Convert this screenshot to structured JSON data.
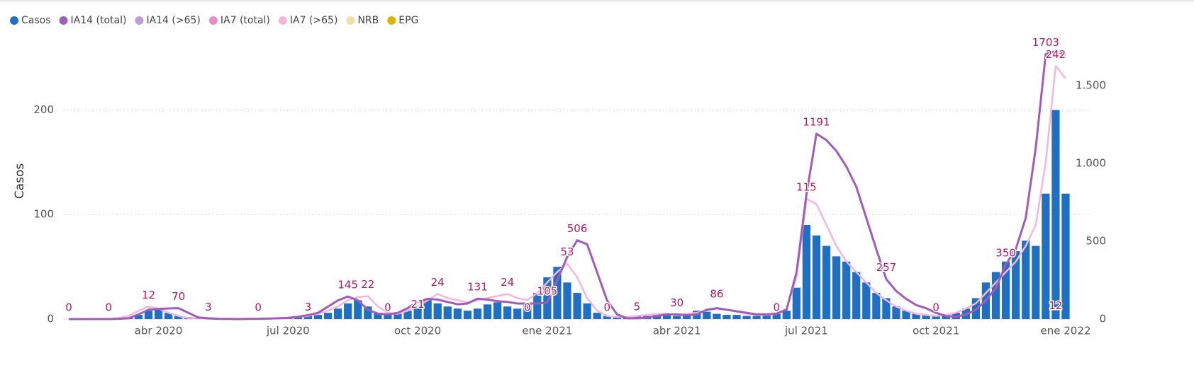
{
  "chart_data": {
    "type": "bar",
    "y_label": "Casos",
    "categories": [
      null,
      null,
      null,
      null,
      null,
      null,
      null,
      null,
      null,
      "abr 2020",
      null,
      null,
      null,
      null,
      null,
      null,
      null,
      null,
      null,
      null,
      null,
      null,
      "jul 2020",
      null,
      null,
      null,
      null,
      null,
      null,
      null,
      null,
      null,
      null,
      null,
      null,
      "oct 2020",
      null,
      null,
      null,
      null,
      null,
      null,
      null,
      null,
      null,
      null,
      null,
      null,
      "ene 2021",
      null,
      null,
      null,
      null,
      null,
      null,
      null,
      null,
      null,
      null,
      null,
      null,
      "abr 2021",
      null,
      null,
      null,
      null,
      null,
      null,
      null,
      null,
      null,
      null,
      null,
      null,
      "jul 2021",
      null,
      null,
      null,
      null,
      null,
      null,
      null,
      null,
      null,
      null,
      null,
      null,
      "oct 2021",
      null,
      null,
      null,
      null,
      null,
      null,
      null,
      null,
      null,
      null,
      null,
      null,
      "ene 2022"
    ],
    "ylim": [
      0,
      268
    ],
    "yticks": [
      0,
      100,
      200
    ],
    "y2lim": [
      0,
      1800
    ],
    "y2ticks": [
      0,
      500,
      {
        "value": 1000,
        "label": "1.000"
      },
      {
        "value": 1500,
        "label": "1.500"
      }
    ],
    "grid": true,
    "legend": "top-left",
    "series": [
      {
        "name": "Casos",
        "color": "#1f6fc5",
        "type": "bar",
        "values": [
          0,
          0,
          0,
          0,
          0,
          0,
          1,
          4,
          8,
          10,
          6,
          3,
          2,
          1,
          1,
          0,
          0,
          0,
          0,
          0,
          1,
          1,
          1,
          2,
          3,
          4,
          6,
          10,
          15,
          18,
          12,
          6,
          4,
          5,
          8,
          12,
          18,
          15,
          12,
          10,
          8,
          10,
          14,
          16,
          12,
          10,
          14,
          25,
          40,
          50,
          35,
          25,
          15,
          6,
          3,
          2,
          2,
          3,
          3,
          4,
          4,
          3,
          5,
          8,
          7,
          5,
          4,
          4,
          3,
          3,
          4,
          5,
          8,
          30,
          90,
          80,
          70,
          60,
          55,
          45,
          35,
          25,
          20,
          12,
          8,
          5,
          4,
          3,
          4,
          6,
          10,
          20,
          35,
          45,
          55,
          65,
          75,
          70,
          120,
          200,
          120
        ]
      },
      {
        "name": "IA14 (total)",
        "color": "#a05cb8",
        "type": "line",
        "axis": "y2",
        "values": [
          0,
          0,
          0,
          0,
          0,
          2,
          5,
          30,
          60,
          65,
          68,
          70,
          40,
          10,
          5,
          2,
          1,
          0,
          1,
          2,
          3,
          5,
          8,
          15,
          25,
          40,
          80,
          120,
          145,
          120,
          60,
          35,
          30,
          40,
          70,
          110,
          130,
          125,
          110,
          95,
          100,
          131,
          125,
          115,
          110,
          100,
          100,
          100,
          105,
          250,
          400,
          506,
          480,
          300,
          120,
          30,
          5,
          5,
          10,
          20,
          30,
          30,
          25,
          30,
          60,
          70,
          60,
          50,
          40,
          30,
          30,
          35,
          60,
          300,
          800,
          1191,
          1150,
          1080,
          980,
          850,
          650,
          450,
          257,
          180,
          130,
          90,
          70,
          40,
          20,
          15,
          30,
          60,
          120,
          200,
          350,
          450,
          650,
          1100,
          1703,
          1720,
          1700
        ],
        "value_labels": [
          "0",
          null,
          null,
          null,
          "0",
          null,
          null,
          null,
          null,
          null,
          null,
          "70",
          null,
          null,
          null,
          null,
          null,
          null,
          null,
          null,
          null,
          null,
          null,
          null,
          null,
          null,
          null,
          null,
          "145",
          null,
          null,
          null,
          null,
          null,
          null,
          null,
          null,
          null,
          null,
          null,
          null,
          "131",
          null,
          null,
          null,
          null,
          null,
          null,
          "105",
          null,
          null,
          "506",
          null,
          null,
          null,
          null,
          null,
          null,
          null,
          null,
          null,
          null,
          null,
          null,
          null,
          null,
          null,
          null,
          null,
          null,
          null,
          null,
          null,
          null,
          null,
          "1191",
          null,
          null,
          null,
          null,
          null,
          null,
          "257",
          null,
          null,
          null,
          null,
          null,
          null,
          null,
          null,
          null,
          null,
          null,
          "350",
          null,
          null,
          null,
          "1703",
          null,
          null
        ]
      },
      {
        "name": "IA14 (>65)",
        "color": "#c39bd3",
        "type": "line",
        "axis": "y2",
        "values": [
          null,
          null,
          null,
          null,
          null,
          null,
          null,
          null,
          null,
          null,
          null,
          null,
          null,
          null,
          3,
          null,
          null,
          null,
          null,
          0,
          null,
          null,
          null,
          null,
          3,
          null,
          null,
          null,
          null,
          null,
          null,
          null,
          0,
          null,
          null,
          21,
          null,
          null,
          null,
          null,
          null,
          null,
          null,
          null,
          null,
          null,
          0,
          null,
          null,
          null,
          null,
          null,
          null,
          null,
          0,
          null,
          null,
          5,
          null,
          null,
          null,
          30,
          null,
          null,
          null,
          86,
          null,
          null,
          null,
          null,
          null,
          0,
          null,
          null,
          null,
          null,
          null,
          null,
          null,
          null,
          null,
          null,
          null,
          null,
          null,
          null,
          null,
          0,
          null,
          null,
          null,
          null,
          null,
          null,
          null,
          null,
          null,
          null,
          null,
          12,
          null
        ],
        "value_labels": [
          null,
          null,
          null,
          null,
          null,
          null,
          null,
          null,
          null,
          null,
          null,
          null,
          null,
          null,
          "3",
          null,
          null,
          null,
          null,
          "0",
          null,
          null,
          null,
          null,
          "3",
          null,
          null,
          null,
          null,
          null,
          null,
          null,
          "0",
          null,
          null,
          "21",
          null,
          null,
          null,
          null,
          null,
          null,
          null,
          null,
          null,
          null,
          "0",
          null,
          null,
          null,
          null,
          null,
          null,
          null,
          "0",
          null,
          null,
          "5",
          null,
          null,
          null,
          "30",
          null,
          null,
          null,
          "86",
          null,
          null,
          null,
          null,
          null,
          "0",
          null,
          null,
          null,
          null,
          null,
          null,
          null,
          null,
          null,
          null,
          null,
          null,
          null,
          null,
          null,
          "0",
          null,
          null,
          null,
          null,
          null,
          null,
          null,
          null,
          null,
          null,
          null,
          "12",
          null
        ]
      },
      {
        "name": "IA7 (total)",
        "color": "#ea8cc8",
        "type": "line",
        "axis": "y2",
        "values": [
          null,
          null,
          null,
          null,
          null,
          null,
          null,
          null,
          null,
          null,
          null,
          null,
          null,
          null,
          null,
          null,
          null,
          null,
          null,
          null,
          null,
          null,
          null,
          null,
          null,
          null,
          null,
          null,
          null,
          null,
          null,
          null,
          null,
          null,
          null,
          null,
          null,
          null,
          null,
          null,
          null,
          null,
          null,
          null,
          null,
          null,
          null,
          null,
          null,
          null,
          null,
          null,
          null,
          null,
          null,
          null,
          null,
          null,
          null,
          null,
          null,
          null,
          null,
          null,
          null,
          null,
          null,
          null,
          null,
          null,
          null,
          null,
          null,
          null,
          null,
          null,
          null,
          null,
          null,
          null,
          null,
          null,
          null,
          null,
          null,
          null,
          null,
          null,
          null,
          null,
          null,
          null,
          null,
          null,
          null,
          null,
          null,
          null,
          null,
          null,
          null
        ]
      },
      {
        "name": "IA7 (>65)",
        "color": "#f4b6df",
        "type": "line",
        "values": [
          0,
          0,
          0,
          0,
          0,
          1,
          3,
          8,
          12,
          10,
          6,
          3,
          1,
          1,
          0,
          0,
          0,
          0,
          0,
          0,
          0,
          1,
          1,
          2,
          3,
          5,
          8,
          12,
          18,
          21,
          22,
          12,
          6,
          5,
          8,
          12,
          18,
          24,
          20,
          18,
          16,
          18,
          20,
          22,
          24,
          20,
          18,
          25,
          35,
          45,
          53,
          40,
          20,
          8,
          3,
          2,
          2,
          3,
          4,
          5,
          5,
          4,
          5,
          6,
          8,
          10,
          9,
          7,
          5,
          4,
          4,
          5,
          10,
          40,
          115,
          110,
          90,
          70,
          55,
          45,
          35,
          25,
          18,
          12,
          8,
          5,
          4,
          3,
          4,
          6,
          10,
          15,
          25,
          35,
          45,
          55,
          70,
          90,
          150,
          242,
          230
        ],
        "value_labels": [
          null,
          null,
          null,
          null,
          null,
          null,
          null,
          null,
          "12",
          null,
          null,
          null,
          null,
          null,
          null,
          null,
          null,
          null,
          null,
          null,
          null,
          null,
          null,
          null,
          null,
          null,
          null,
          null,
          null,
          null,
          "22",
          null,
          null,
          null,
          null,
          null,
          null,
          "24",
          null,
          null,
          null,
          null,
          null,
          null,
          "24",
          null,
          null,
          null,
          null,
          null,
          "53",
          null,
          null,
          null,
          null,
          null,
          null,
          null,
          null,
          null,
          null,
          null,
          null,
          null,
          null,
          null,
          null,
          null,
          null,
          null,
          null,
          null,
          null,
          null,
          "115",
          null,
          null,
          null,
          null,
          null,
          null,
          null,
          null,
          null,
          null,
          null,
          null,
          null,
          null,
          null,
          null,
          null,
          null,
          null,
          null,
          null,
          null,
          null,
          null,
          "242",
          null
        ]
      },
      {
        "name": "NRB",
        "color": "#f3e0a0",
        "type": "bar",
        "values": [
          null,
          null,
          null,
          null,
          null,
          null,
          null,
          null,
          null,
          null,
          null,
          null,
          null,
          null,
          null,
          null,
          null,
          null,
          null,
          null,
          null,
          null,
          null,
          null,
          null,
          null,
          null,
          null,
          null,
          null,
          null,
          null,
          null,
          null,
          null,
          null,
          null,
          null,
          null,
          null,
          null,
          null,
          null,
          null,
          null,
          null,
          null,
          null,
          null,
          null,
          null,
          null,
          null,
          null,
          null,
          null,
          null,
          null,
          null,
          null,
          null,
          null,
          null,
          null,
          null,
          null,
          null,
          null,
          null,
          null,
          null,
          null,
          null,
          null,
          null,
          null,
          null,
          null,
          null,
          null,
          null,
          null,
          null,
          null,
          null,
          null,
          null,
          null,
          null,
          null,
          null,
          null,
          null,
          null,
          null,
          null,
          null,
          null,
          null,
          null,
          null
        ]
      },
      {
        "name": "EPG",
        "color": "#d9b400",
        "type": "bar",
        "values": [
          null,
          null,
          null,
          null,
          null,
          null,
          null,
          null,
          null,
          null,
          null,
          null,
          null,
          null,
          null,
          null,
          null,
          null,
          null,
          null,
          null,
          null,
          null,
          null,
          null,
          null,
          null,
          null,
          null,
          null,
          null,
          null,
          null,
          null,
          null,
          null,
          null,
          null,
          null,
          null,
          null,
          null,
          null,
          null,
          null,
          null,
          null,
          null,
          null,
          null,
          null,
          null,
          null,
          null,
          null,
          null,
          null,
          null,
          null,
          null,
          null,
          null,
          null,
          null,
          null,
          null,
          null,
          null,
          null,
          null,
          null,
          null,
          null,
          null,
          null,
          null,
          null,
          null,
          null,
          null,
          null,
          null,
          null,
          null,
          null,
          null,
          null,
          null,
          null,
          null,
          null,
          null,
          null,
          null,
          null,
          null,
          null,
          null,
          null,
          null,
          null
        ]
      }
    ]
  }
}
